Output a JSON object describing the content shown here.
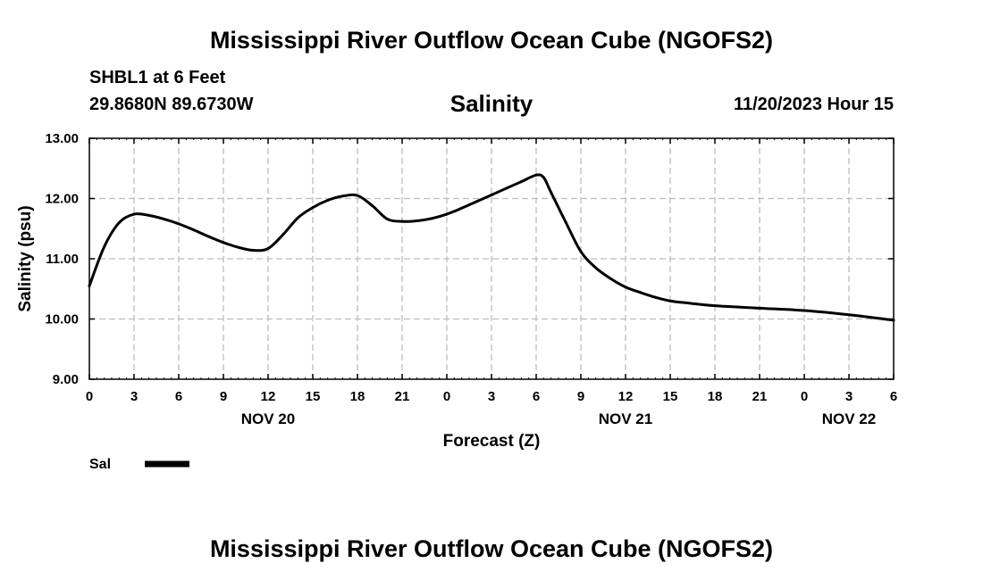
{
  "header": {
    "title": "Mississippi River Outflow Ocean Cube (NGOFS2)",
    "station": "SHBL1 at 6 Feet",
    "coords": "29.8680N  89.6730W",
    "subtitle": "Salinity",
    "datetime": "11/20/2023 Hour 15"
  },
  "footer": {
    "title": "Mississippi River Outflow Ocean Cube (NGOFS2)"
  },
  "chart_data": {
    "type": "line",
    "title": "Salinity",
    "xlabel": "Forecast (Z)",
    "ylabel": "Salinity (psu)",
    "xlim": [
      0,
      54
    ],
    "ylim": [
      9,
      13
    ],
    "grid": true,
    "x_tick_values": [
      0,
      3,
      6,
      9,
      12,
      15,
      18,
      21,
      24,
      27,
      30,
      33,
      36,
      39,
      42,
      45,
      48,
      51,
      54
    ],
    "x_tick_labels": [
      "0",
      "3",
      "6",
      "9",
      "12",
      "15",
      "18",
      "21",
      "0",
      "3",
      "6",
      "9",
      "12",
      "15",
      "18",
      "21",
      "0",
      "3",
      "6"
    ],
    "y_ticks": [
      9,
      10,
      11,
      12,
      13
    ],
    "y_tick_labels": [
      "9.00",
      "10.00",
      "11.00",
      "12.00",
      "13.00"
    ],
    "date_labels": [
      {
        "x": 12,
        "label": "NOV 20"
      },
      {
        "x": 36,
        "label": "NOV 21"
      },
      {
        "x": 51,
        "label": "NOV 22"
      }
    ],
    "legend_position": "bottom-left",
    "series": [
      {
        "name": "Sal",
        "color": "#000000",
        "x": [
          0,
          1,
          2,
          3,
          4,
          5,
          6,
          7,
          8,
          9,
          10,
          11,
          12,
          13,
          14,
          15,
          16,
          17,
          18,
          19,
          20,
          21,
          22,
          23,
          24,
          25,
          26,
          27,
          28,
          29,
          30,
          30.5,
          31,
          32,
          33,
          34,
          35,
          36,
          37,
          38,
          39,
          40,
          42,
          45,
          48,
          51,
          54
        ],
        "y": [
          10.55,
          11.2,
          11.6,
          11.74,
          11.72,
          11.66,
          11.58,
          11.48,
          11.37,
          11.27,
          11.19,
          11.14,
          11.17,
          11.4,
          11.68,
          11.85,
          11.97,
          12.04,
          12.05,
          11.88,
          11.66,
          11.62,
          11.63,
          11.67,
          11.74,
          11.84,
          11.95,
          12.06,
          12.17,
          12.28,
          12.39,
          12.35,
          12.1,
          11.6,
          11.12,
          10.85,
          10.67,
          10.53,
          10.44,
          10.36,
          10.3,
          10.27,
          10.22,
          10.18,
          10.14,
          10.07,
          9.98
        ]
      }
    ]
  }
}
